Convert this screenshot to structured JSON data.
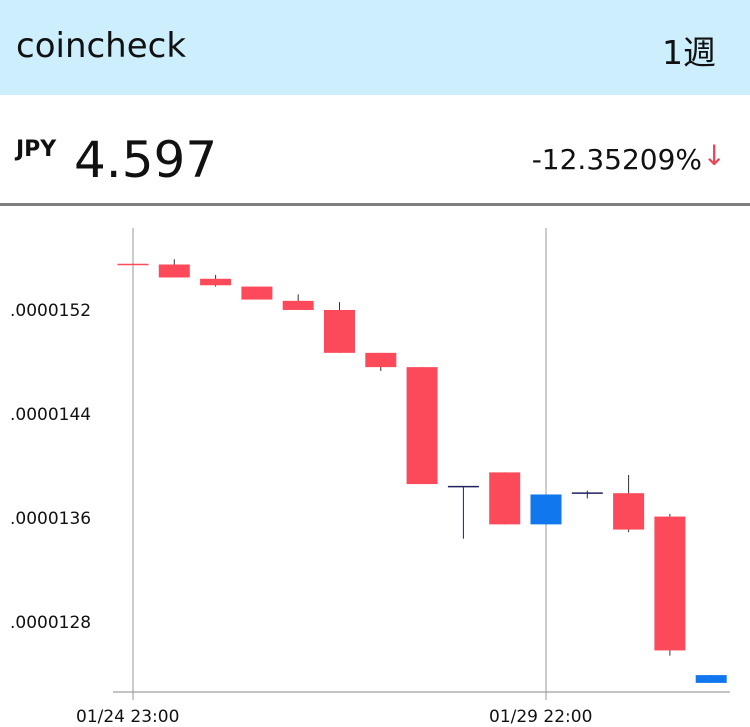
{
  "header": {
    "app_title": "coincheck",
    "period_label": "1週"
  },
  "ticker": {
    "currency": "JPY",
    "price": "4.597",
    "change_percent": "-12.35209%",
    "change_arrow": "↓",
    "arrow_color": "#e8485a"
  },
  "colors": {
    "header_bg": "#cdeefc",
    "down_candle": "#fc4a5b",
    "up_candle": "#1177ee",
    "neutral_candle": "#202060"
  },
  "chart_data": {
    "type": "candlestick",
    "title": "",
    "xlabel": "",
    "ylabel": "",
    "ylim": [
      1.226e-05,
      1.6e-05
    ],
    "y_ticks": [
      1.52e-05,
      1.44e-05,
      1.36e-05,
      1.28e-05
    ],
    "y_tick_labels": [
      ".0000152",
      ".0000144",
      ".0000136",
      ".0000128"
    ],
    "x_tick_labels": [
      "01/24 23:00",
      "01/29 22:00"
    ],
    "x_tick_candle_index": [
      0,
      10
    ],
    "grid": "vertical lines at x tick labels",
    "candles": [
      {
        "open": 1.555e-05,
        "close": 1.555e-05,
        "high": 1.555e-05,
        "low": 1.555e-05
      },
      {
        "open": 1.555e-05,
        "close": 1.545e-05,
        "high": 1.559e-05,
        "low": 1.545e-05
      },
      {
        "open": 1.544e-05,
        "close": 1.539e-05,
        "high": 1.547e-05,
        "low": 1.538e-05
      },
      {
        "open": 1.538e-05,
        "close": 1.528e-05,
        "high": 1.538e-05,
        "low": 1.528e-05
      },
      {
        "open": 1.527e-05,
        "close": 1.52e-05,
        "high": 1.532e-05,
        "low": 1.52e-05
      },
      {
        "open": 1.52e-05,
        "close": 1.487e-05,
        "high": 1.526e-05,
        "low": 1.487e-05
      },
      {
        "open": 1.487e-05,
        "close": 1.476e-05,
        "high": 1.487e-05,
        "low": 1.473e-05
      },
      {
        "open": 1.476e-05,
        "close": 1.386e-05,
        "high": 1.476e-05,
        "low": 1.386e-05
      },
      {
        "open": 1.384e-05,
        "close": 1.384e-05,
        "high": 1.384e-05,
        "low": 1.344e-05
      },
      {
        "open": 1.395e-05,
        "close": 1.355e-05,
        "high": 1.395e-05,
        "low": 1.355e-05
      },
      {
        "open": 1.355e-05,
        "close": 1.378e-05,
        "high": 1.378e-05,
        "low": 1.355e-05
      },
      {
        "open": 1.379e-05,
        "close": 1.379e-05,
        "high": 1.381e-05,
        "low": 1.375e-05
      },
      {
        "open": 1.379e-05,
        "close": 1.351e-05,
        "high": 1.393e-05,
        "low": 1.349e-05
      },
      {
        "open": 1.361e-05,
        "close": 1.258e-05,
        "high": 1.363e-05,
        "low": 1.254e-05
      },
      {
        "open": 1.233e-05,
        "close": 1.239e-05,
        "high": 1.239e-05,
        "low": 1.233e-05
      }
    ]
  }
}
